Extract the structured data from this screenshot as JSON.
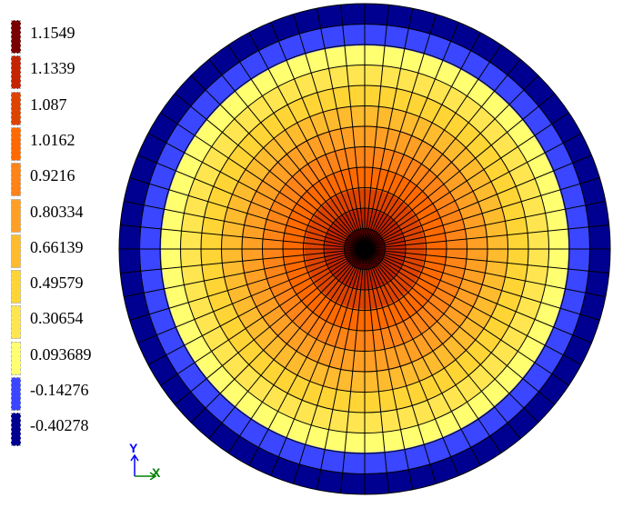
{
  "legend": {
    "items": [
      {
        "label": "1.1549",
        "color": "#7a0000"
      },
      {
        "label": "1.1339",
        "color": "#c42400"
      },
      {
        "label": "1.087",
        "color": "#dd4400"
      },
      {
        "label": "1.0162",
        "color": "#ff6a00"
      },
      {
        "label": "0.9216",
        "color": "#ff8418"
      },
      {
        "label": "0.80334",
        "color": "#ffa024"
      },
      {
        "label": "0.66139",
        "color": "#ffbb2e"
      },
      {
        "label": "0.49579",
        "color": "#ffd535"
      },
      {
        "label": "0.30654",
        "color": "#ffe650"
      },
      {
        "label": "0.093689",
        "color": "#ffff70"
      },
      {
        "label": "-0.14276",
        "color": "#3a46ff"
      },
      {
        "label": "-0.40278",
        "color": "#000090"
      }
    ]
  },
  "axes": {
    "x_label": "X",
    "y_label": "Y",
    "x_color": "#008000",
    "y_color": "#0000ff"
  }
}
